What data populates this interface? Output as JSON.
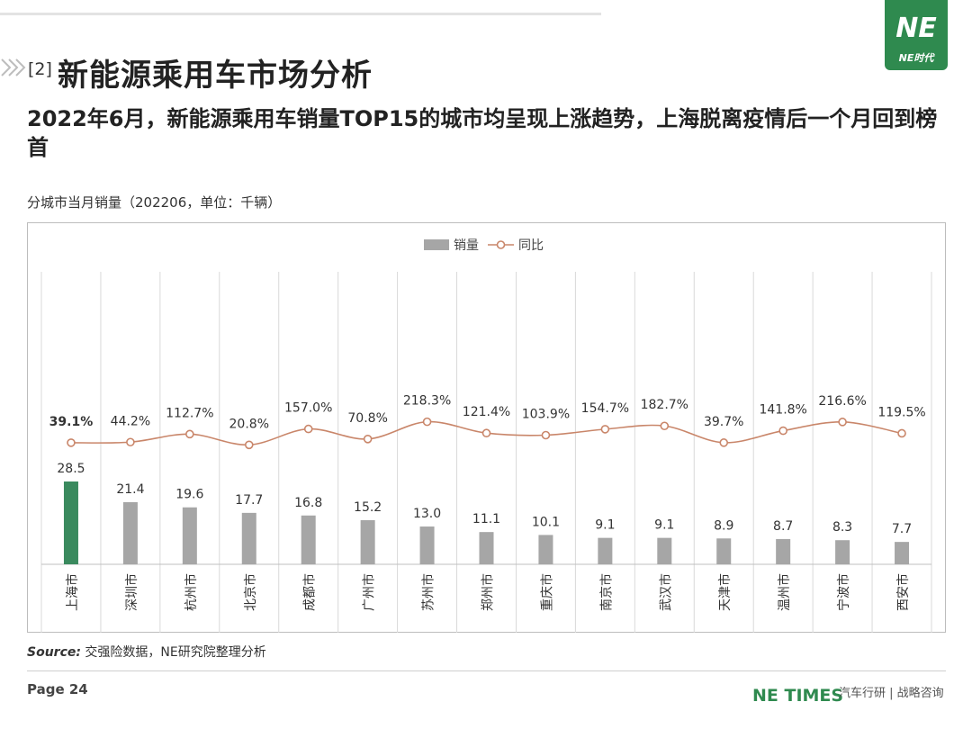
{
  "header": {
    "section_number": "[2]",
    "section_title": "新能源乘用车市场分析",
    "logo_mark": "NE",
    "logo_text": "NE时代"
  },
  "subheading": "2022年6月，新能源乘用车销量TOP15的城市均呈现上涨趋势，上海脱离疫情后一个月回到榜首",
  "chart_caption": "分城市当月销量（202206，单位：千辆）",
  "chart_data": {
    "type": "bar",
    "categories": [
      "上海市",
      "深圳市",
      "杭州市",
      "北京市",
      "成都市",
      "广州市",
      "苏州市",
      "郑州市",
      "重庆市",
      "南京市",
      "武汉市",
      "天津市",
      "温州市",
      "宁波市",
      "西安市"
    ],
    "series": [
      {
        "name": "销量",
        "type": "bar",
        "values": [
          28.5,
          21.4,
          19.6,
          17.7,
          16.8,
          15.2,
          13.0,
          11.1,
          10.1,
          9.1,
          9.1,
          8.9,
          8.7,
          8.3,
          7.7
        ],
        "labels": [
          "28.5",
          "21.4",
          "19.6",
          "17.7",
          "16.8",
          "15.2",
          "13.0",
          "11.1",
          "10.1",
          "9.1",
          "9.1",
          "8.9",
          "8.7",
          "8.3",
          "7.7"
        ]
      },
      {
        "name": "同比",
        "type": "line",
        "values": [
          39.1,
          44.2,
          112.7,
          20.8,
          157.0,
          70.8,
          218.3,
          121.4,
          103.9,
          154.7,
          182.7,
          39.7,
          141.8,
          216.6,
          119.5
        ],
        "labels": [
          "39.1%",
          "44.2%",
          "112.7%",
          "20.8%",
          "157.0%",
          "70.8%",
          "218.3%",
          "121.4%",
          "103.9%",
          "154.7%",
          "182.7%",
          "39.7%",
          "141.8%",
          "216.6%",
          "119.5%"
        ]
      }
    ],
    "highlight_index": 0,
    "legend_position": "top-center",
    "grid": "vertical",
    "colors": {
      "bar": "#a6a6a6",
      "highlight": "#3a8a5e",
      "line": "#c9866a",
      "marker_fill": "#ffffff"
    }
  },
  "footer": {
    "source_label": "Source:",
    "source_text": " 交强险数据，NE研究院整理分析",
    "page": "Page 24",
    "brand": "NE TIMES",
    "tagline": "汽车行研 | 战略咨询"
  }
}
